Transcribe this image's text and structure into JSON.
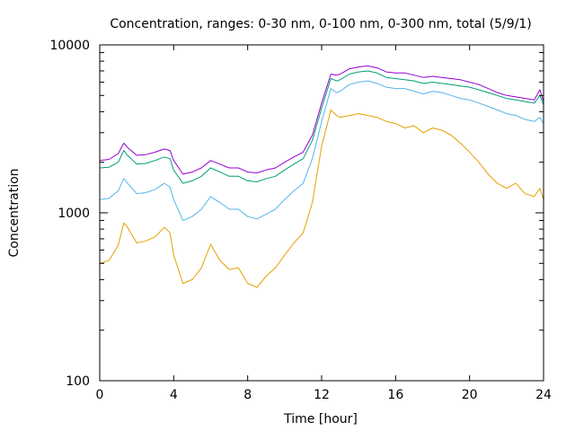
{
  "chart_data": {
    "type": "line",
    "title": "Concentration, ranges: 0-30 nm, 0-100 nm, 0-300 nm, total (5/9/1)",
    "xlabel": "Time [hour]",
    "ylabel": "Concentration",
    "xlim": [
      0,
      24
    ],
    "ylim": [
      100,
      10000
    ],
    "yscale": "log",
    "grid": false,
    "legend": "none",
    "x_ticks": [
      {
        "value": 0,
        "label": "0"
      },
      {
        "value": 4,
        "label": "4"
      },
      {
        "value": 8,
        "label": "8"
      },
      {
        "value": 12,
        "label": "12"
      },
      {
        "value": 16,
        "label": "16"
      },
      {
        "value": 20,
        "label": "20"
      },
      {
        "value": 24,
        "label": "24"
      }
    ],
    "y_ticks": [
      {
        "value": 100,
        "label": "100"
      },
      {
        "value": 1000,
        "label": "1000"
      },
      {
        "value": 10000,
        "label": "10000"
      }
    ],
    "x": [
      0,
      0.5,
      1,
      1.3,
      1.5,
      2,
      2.5,
      3,
      3.5,
      3.8,
      4,
      4.5,
      5,
      5.5,
      6,
      6.5,
      7,
      7.5,
      8,
      8.5,
      9,
      9.5,
      10,
      10.5,
      11,
      11.5,
      12,
      12.5,
      12.8,
      13,
      13.5,
      14,
      14.5,
      15,
      15.5,
      16,
      16.5,
      17,
      17.5,
      18,
      18.5,
      19,
      19.5,
      20,
      20.5,
      21,
      21.5,
      22,
      22.5,
      23,
      23.5,
      23.8,
      24
    ],
    "series": [
      {
        "color": "#e69f00",
        "values": [
          500,
          520,
          640,
          870,
          820,
          660,
          680,
          720,
          820,
          760,
          560,
          380,
          400,
          470,
          650,
          520,
          460,
          470,
          380,
          360,
          420,
          470,
          560,
          660,
          760,
          1150,
          2500,
          4100,
          3800,
          3700,
          3800,
          3900,
          3800,
          3700,
          3500,
          3400,
          3200,
          3300,
          3000,
          3200,
          3100,
          2900,
          2600,
          2300,
          2000,
          1700,
          1500,
          1400,
          1500,
          1300,
          1250,
          1400,
          1200
        ]
      },
      {
        "color": "#56b4e9",
        "values": [
          1200,
          1220,
          1350,
          1600,
          1500,
          1300,
          1320,
          1380,
          1500,
          1420,
          1200,
          900,
          950,
          1050,
          1250,
          1150,
          1050,
          1050,
          950,
          920,
          980,
          1050,
          1200,
          1350,
          1500,
          2100,
          3500,
          5500,
          5200,
          5300,
          5800,
          6000,
          6100,
          5900,
          5600,
          5500,
          5500,
          5300,
          5100,
          5300,
          5200,
          5000,
          4800,
          4700,
          4500,
          4300,
          4100,
          3900,
          3800,
          3600,
          3500,
          3700,
          3400
        ]
      },
      {
        "color": "#009e73",
        "values": [
          1850,
          1870,
          2000,
          2350,
          2200,
          1950,
          1970,
          2050,
          2150,
          2100,
          1800,
          1500,
          1550,
          1650,
          1850,
          1750,
          1650,
          1650,
          1550,
          1530,
          1600,
          1650,
          1800,
          1950,
          2100,
          2700,
          4200,
          6300,
          6100,
          6200,
          6700,
          6900,
          7000,
          6800,
          6400,
          6300,
          6200,
          6100,
          5900,
          6000,
          5900,
          5800,
          5700,
          5600,
          5400,
          5200,
          5000,
          4800,
          4700,
          4600,
          4500,
          5000,
          4400
        ]
      },
      {
        "color": "#9400d3",
        "values": [
          2050,
          2080,
          2250,
          2600,
          2450,
          2200,
          2220,
          2300,
          2400,
          2350,
          2050,
          1700,
          1750,
          1850,
          2050,
          1950,
          1850,
          1850,
          1750,
          1730,
          1800,
          1850,
          2000,
          2150,
          2300,
          2900,
          4500,
          6700,
          6600,
          6700,
          7200,
          7400,
          7500,
          7300,
          6900,
          6800,
          6800,
          6600,
          6400,
          6500,
          6400,
          6300,
          6200,
          6000,
          5800,
          5500,
          5200,
          5000,
          4900,
          4800,
          4700,
          5400,
          4600
        ]
      }
    ]
  }
}
